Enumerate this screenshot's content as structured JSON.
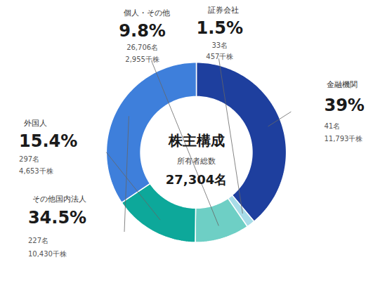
{
  "chart_data": {
    "type": "pie",
    "title": "株主構成",
    "subtitle": [
      "所有者総数",
      "27,304名"
    ],
    "categories": [
      "金融機関",
      "証券会社",
      "個人・その他",
      "外国人",
      "その他国内法人"
    ],
    "values": [
      39.0,
      1.5,
      9.8,
      15.4,
      34.5
    ],
    "value_labels": [
      "39%",
      "1.5%",
      "9.8%",
      "15.4%",
      "34.5%"
    ],
    "data_labels": true,
    "colors": [
      "#1e3f9e",
      "#a8dce8",
      "#6ecfc5",
      "#0da89a",
      "#3e7fdb"
    ],
    "annotations": [
      [
        "41名",
        "11,793千株"
      ],
      [
        "33名",
        "457千株"
      ],
      [
        "26,706名",
        "2,955千株"
      ],
      [
        "297名",
        "4,653千株"
      ],
      [
        "227名",
        "10,430千株"
      ]
    ]
  }
}
